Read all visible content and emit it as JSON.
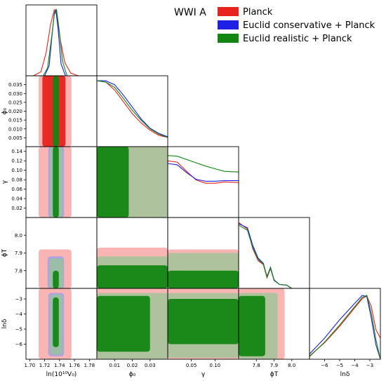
{
  "chart_data": {
    "type": "triangle",
    "title": "WWI A",
    "colors": {
      "Planck": "#e8231e",
      "Euclid conservative + Planck": "#1f1fe6",
      "Euclid realistic + Planck": "#138513"
    },
    "legend": {
      "placement": "top-right",
      "entries": [
        {
          "name": "Planck",
          "color": "#e8231e"
        },
        {
          "name": "Euclid conservative + Planck",
          "color": "#1f1fe6"
        },
        {
          "name": "Euclid realistic + Planck",
          "color": "#138513"
        }
      ]
    },
    "parameters": [
      {
        "id": "lnV0",
        "label": "ln(10¹⁰V₀)",
        "range": [
          1.695,
          1.79
        ],
        "ticks": [
          1.7,
          1.72,
          1.74,
          1.76,
          1.78
        ],
        "tick_labels": [
          "1.70",
          "1.72",
          "1.74",
          "1.76",
          "1.78"
        ]
      },
      {
        "id": "phi0",
        "label": "ϕ₀",
        "range": [
          0.0,
          0.04
        ],
        "ticks": [
          0.005,
          0.01,
          0.015,
          0.02,
          0.025,
          0.03,
          0.035
        ],
        "tick_labels": [
          "0.005",
          "0.010",
          "0.015",
          "0.020",
          "0.025",
          "0.030",
          "0.035"
        ],
        "x_ticks": [
          0.01,
          0.02,
          0.03
        ],
        "x_tick_labels": [
          "0.01",
          "0.02",
          "0.03"
        ]
      },
      {
        "id": "gamma",
        "label": "γ",
        "range": [
          0.0,
          0.15
        ],
        "ticks": [
          0.02,
          0.04,
          0.06,
          0.08,
          0.1,
          0.12,
          0.14
        ],
        "tick_labels": [
          "0.02",
          "0.04",
          "0.06",
          "0.08",
          "0.10",
          "0.12",
          "0.14"
        ],
        "x_ticks": [
          0.05,
          0.1
        ],
        "x_tick_labels": [
          "0.05",
          "0.10"
        ]
      },
      {
        "id": "phiT",
        "label": "ϕT",
        "range": [
          7.7,
          8.1
        ],
        "ticks": [
          7.8,
          7.9,
          8.0
        ],
        "tick_labels": [
          "7.8",
          "7.9",
          "8.0"
        ]
      },
      {
        "id": "lndelta",
        "label": "lnδ",
        "range": [
          -7.0,
          -2.3
        ],
        "ticks": [
          -6,
          -5,
          -4,
          -3
        ],
        "tick_labels": [
          "−6",
          "−5",
          "−4",
          "−3"
        ]
      }
    ],
    "marginals": {
      "lnV0": {
        "Planck": {
          "x": [
            1.705,
            1.715,
            1.722,
            1.728,
            1.733,
            1.736,
            1.741,
            1.747,
            1.755,
            1.765
          ],
          "y": [
            0.0,
            0.06,
            0.35,
            0.78,
            1.0,
            0.94,
            0.55,
            0.2,
            0.04,
            0.0
          ]
        },
        "Euclid conservative + Planck": {
          "x": [
            1.72,
            1.726,
            1.73,
            1.733,
            1.735,
            1.738,
            1.742,
            1.748
          ],
          "y": [
            0.0,
            0.15,
            0.62,
            0.95,
            1.0,
            0.72,
            0.18,
            0.0
          ]
        },
        "Euclid realistic + Planck": {
          "x": [
            1.718,
            1.724,
            1.729,
            1.733,
            1.736,
            1.739,
            1.744,
            1.75
          ],
          "y": [
            0.0,
            0.12,
            0.55,
            0.93,
            1.0,
            0.74,
            0.22,
            0.0
          ]
        }
      },
      "phi0": {
        "Planck": {
          "x": [
            0.0,
            0.005,
            0.01,
            0.015,
            0.02,
            0.025,
            0.03,
            0.035,
            0.04
          ],
          "y": [
            1.0,
            0.98,
            0.86,
            0.68,
            0.5,
            0.36,
            0.25,
            0.17,
            0.14
          ]
        },
        "Euclid conservative + Planck": {
          "x": [
            0.0,
            0.005,
            0.01,
            0.015,
            0.02,
            0.025,
            0.03,
            0.035,
            0.04
          ],
          "y": [
            1.0,
            1.0,
            0.94,
            0.78,
            0.6,
            0.42,
            0.28,
            0.2,
            0.15
          ]
        },
        "Euclid realistic + Planck": {
          "x": [
            0.0,
            0.005,
            0.01,
            0.015,
            0.02,
            0.025,
            0.03,
            0.035,
            0.04
          ],
          "y": [
            1.0,
            0.98,
            0.9,
            0.73,
            0.55,
            0.4,
            0.27,
            0.19,
            0.14
          ]
        }
      },
      "gamma": {
        "Planck": {
          "x": [
            0.0,
            0.02,
            0.04,
            0.06,
            0.08,
            0.1,
            0.12,
            0.15
          ],
          "y": [
            0.86,
            0.84,
            0.7,
            0.57,
            0.52,
            0.52,
            0.54,
            0.53
          ]
        },
        "Euclid conservative + Planck": {
          "x": [
            0.0,
            0.02,
            0.04,
            0.06,
            0.08,
            0.1,
            0.12,
            0.15
          ],
          "y": [
            0.82,
            0.8,
            0.68,
            0.58,
            0.55,
            0.55,
            0.56,
            0.56
          ]
        },
        "Euclid realistic + Planck": {
          "x": [
            0.0,
            0.02,
            0.04,
            0.06,
            0.08,
            0.1,
            0.12,
            0.15
          ],
          "y": [
            0.94,
            0.93,
            0.88,
            0.83,
            0.78,
            0.74,
            0.7,
            0.69
          ]
        }
      },
      "phiT": {
        "Planck": {
          "x": [
            7.7,
            7.75,
            7.78,
            7.81,
            7.84,
            7.86,
            7.88,
            7.9,
            7.93,
            7.97,
            8.0
          ],
          "y": [
            1.0,
            0.9,
            0.6,
            0.42,
            0.36,
            0.16,
            0.3,
            0.12,
            0.06,
            0.05,
            0.0
          ]
        },
        "Euclid conservative + Planck": {
          "x": [
            7.7,
            7.75,
            7.78,
            7.81,
            7.84,
            7.86,
            7.88,
            7.9,
            7.93,
            7.97,
            8.0
          ],
          "y": [
            0.98,
            0.92,
            0.65,
            0.46,
            0.38,
            0.18,
            0.32,
            0.13,
            0.06,
            0.05,
            0.0
          ]
        },
        "Euclid realistic + Planck": {
          "x": [
            7.7,
            7.75,
            7.78,
            7.81,
            7.84,
            7.86,
            7.88,
            7.9,
            7.93,
            7.97,
            8.0
          ],
          "y": [
            0.96,
            0.88,
            0.62,
            0.44,
            0.37,
            0.17,
            0.31,
            0.12,
            0.06,
            0.05,
            0.0
          ]
        }
      },
      "lndelta": {
        "Planck": {
          "x": [
            -7.0,
            -6.0,
            -5.0,
            -4.0,
            -3.5,
            -3.2,
            -2.9,
            -2.6,
            -2.3
          ],
          "y": [
            0.05,
            0.25,
            0.5,
            0.78,
            0.92,
            0.96,
            0.8,
            0.45,
            0.32
          ]
        },
        "Euclid conservative + Planck": {
          "x": [
            -7.0,
            -6.0,
            -5.0,
            -4.0,
            -3.5,
            -3.2,
            -2.9,
            -2.6,
            -2.3
          ],
          "y": [
            0.08,
            0.32,
            0.6,
            0.85,
            0.97,
            0.95,
            0.62,
            0.22,
            0.0
          ]
        },
        "Euclid realistic + Planck": {
          "x": [
            -7.0,
            -6.0,
            -5.0,
            -4.0,
            -3.5,
            -3.2,
            -2.9,
            -2.6,
            -2.3
          ],
          "y": [
            0.04,
            0.26,
            0.52,
            0.8,
            0.94,
            0.97,
            0.7,
            0.3,
            0.0
          ]
        }
      }
    },
    "contours": [
      {
        "x": "lnV0",
        "y": "phi0",
        "regions": [
          {
            "series": "Planck",
            "level": 0.95,
            "x": [
              1.712,
              1.756
            ],
            "y": [
              0.0,
              0.04
            ]
          },
          {
            "series": "Euclid conservative + Planck",
            "level": 0.95,
            "x": [
              1.725,
              1.746
            ],
            "y": [
              0.0,
              0.04
            ]
          },
          {
            "series": "Euclid realistic + Planck",
            "level": 0.95,
            "x": [
              1.727,
              1.744
            ],
            "y": [
              0.0,
              0.04
            ]
          },
          {
            "series": "Planck",
            "level": 0.68,
            "x": [
              1.717,
              1.748
            ],
            "y": [
              0.0,
              0.04
            ]
          },
          {
            "series": "Euclid realistic + Planck",
            "level": 0.68,
            "x": [
              1.731,
              1.739
            ],
            "y": [
              0.0,
              0.04
            ]
          }
        ]
      },
      {
        "x": "lnV0",
        "y": "gamma",
        "regions": [
          {
            "series": "Planck",
            "level": 0.95,
            "x": [
              1.712,
              1.756
            ],
            "y": [
              0.0,
              0.15
            ]
          },
          {
            "series": "Euclid conservative + Planck",
            "level": 0.95,
            "x": [
              1.725,
              1.746
            ],
            "y": [
              0.0,
              0.15
            ]
          },
          {
            "series": "Euclid realistic + Planck",
            "level": 0.95,
            "x": [
              1.727,
              1.744
            ],
            "y": [
              0.0,
              0.15
            ]
          },
          {
            "series": "Euclid realistic + Planck",
            "level": 0.68,
            "x": [
              1.731,
              1.739
            ],
            "y": [
              0.0,
              0.15
            ]
          }
        ]
      },
      {
        "x": "lnV0",
        "y": "phiT",
        "regions": [
          {
            "series": "Planck",
            "level": 0.95,
            "x": [
              1.712,
              1.756
            ],
            "y": [
              7.7,
              7.92
            ]
          },
          {
            "series": "Euclid conservative + Planck",
            "level": 0.95,
            "x": [
              1.724,
              1.746
            ],
            "y": [
              7.7,
              7.88
            ]
          },
          {
            "series": "Euclid realistic + Planck",
            "level": 0.95,
            "x": [
              1.726,
              1.745
            ],
            "y": [
              7.7,
              7.87
            ]
          },
          {
            "series": "Euclid realistic + Planck",
            "level": 0.68,
            "x": [
              1.731,
              1.739
            ],
            "y": [
              7.7,
              7.8
            ]
          }
        ]
      },
      {
        "x": "lnV0",
        "y": "lndelta",
        "regions": [
          {
            "series": "Planck",
            "level": 0.95,
            "x": [
              1.712,
              1.756
            ],
            "y": [
              -7.0,
              -2.3
            ]
          },
          {
            "series": "Euclid conservative + Planck",
            "level": 0.95,
            "x": [
              1.725,
              1.746
            ],
            "y": [
              -6.8,
              -2.6
            ]
          },
          {
            "series": "Euclid realistic + Planck",
            "level": 0.95,
            "x": [
              1.727,
              1.744
            ],
            "y": [
              -6.7,
              -2.7
            ]
          },
          {
            "series": "Euclid realistic + Planck",
            "level": 0.68,
            "x": [
              1.731,
              1.739
            ],
            "y": [
              -6.2,
              -2.9
            ]
          }
        ]
      },
      {
        "x": "phi0",
        "y": "gamma",
        "regions": [
          {
            "series": "Planck",
            "level": 0.95,
            "x": [
              0.0,
              0.04
            ],
            "y": [
              0.0,
              0.15
            ]
          },
          {
            "series": "Euclid realistic + Planck",
            "level": 0.95,
            "x": [
              0.0,
              0.04
            ],
            "y": [
              0.0,
              0.15
            ]
          },
          {
            "series": "Euclid realistic + Planck",
            "level": 0.68,
            "x": [
              0.0,
              0.018
            ],
            "y": [
              0.0,
              0.15
            ]
          }
        ]
      },
      {
        "x": "phi0",
        "y": "phiT",
        "regions": [
          {
            "series": "Planck",
            "level": 0.95,
            "x": [
              0.0,
              0.04
            ],
            "y": [
              7.7,
              7.93
            ]
          },
          {
            "series": "Euclid realistic + Planck",
            "level": 0.95,
            "x": [
              0.0,
              0.04
            ],
            "y": [
              7.7,
              7.88
            ]
          },
          {
            "series": "Euclid realistic + Planck",
            "level": 0.68,
            "x": [
              0.0,
              0.04
            ],
            "y": [
              7.7,
              7.83
            ]
          }
        ]
      },
      {
        "x": "phi0",
        "y": "lndelta",
        "regions": [
          {
            "series": "Planck",
            "level": 0.95,
            "x": [
              0.0,
              0.04
            ],
            "y": [
              -7.0,
              -2.3
            ]
          },
          {
            "series": "Euclid realistic + Planck",
            "level": 0.95,
            "x": [
              0.0,
              0.04
            ],
            "y": [
              -7.0,
              -2.6
            ]
          },
          {
            "series": "Euclid realistic + Planck",
            "level": 0.68,
            "x": [
              0.0,
              0.03
            ],
            "y": [
              -6.5,
              -2.8
            ]
          }
        ]
      },
      {
        "x": "gamma",
        "y": "phiT",
        "regions": [
          {
            "series": "Planck",
            "level": 0.95,
            "x": [
              0.0,
              0.15
            ],
            "y": [
              7.7,
              7.92
            ]
          },
          {
            "series": "Euclid realistic + Planck",
            "level": 0.95,
            "x": [
              0.0,
              0.15
            ],
            "y": [
              7.7,
              7.9
            ]
          },
          {
            "series": "Euclid realistic + Planck",
            "level": 0.68,
            "x": [
              0.0,
              0.15
            ],
            "y": [
              7.7,
              7.8
            ]
          }
        ]
      },
      {
        "x": "gamma",
        "y": "lndelta",
        "regions": [
          {
            "series": "Planck",
            "level": 0.95,
            "x": [
              0.0,
              0.15
            ],
            "y": [
              -7.0,
              -2.3
            ]
          },
          {
            "series": "Euclid realistic + Planck",
            "level": 0.95,
            "x": [
              0.0,
              0.15
            ],
            "y": [
              -6.9,
              -2.6
            ]
          },
          {
            "series": "Euclid realistic + Planck",
            "level": 0.68,
            "x": [
              0.0,
              0.15
            ],
            "y": [
              -6.0,
              -3.0
            ]
          }
        ]
      },
      {
        "x": "phiT",
        "y": "lndelta",
        "regions": [
          {
            "series": "Planck",
            "level": 0.95,
            "x": [
              7.7,
              7.96
            ],
            "y": [
              -7.0,
              -2.3
            ]
          },
          {
            "series": "Euclid realistic + Planck",
            "level": 0.95,
            "x": [
              7.7,
              7.92
            ],
            "y": [
              -7.0,
              -2.6
            ]
          },
          {
            "series": "Euclid realistic + Planck",
            "level": 0.68,
            "x": [
              7.7,
              7.85
            ],
            "y": [
              -6.8,
              -2.8
            ]
          }
        ]
      }
    ]
  }
}
